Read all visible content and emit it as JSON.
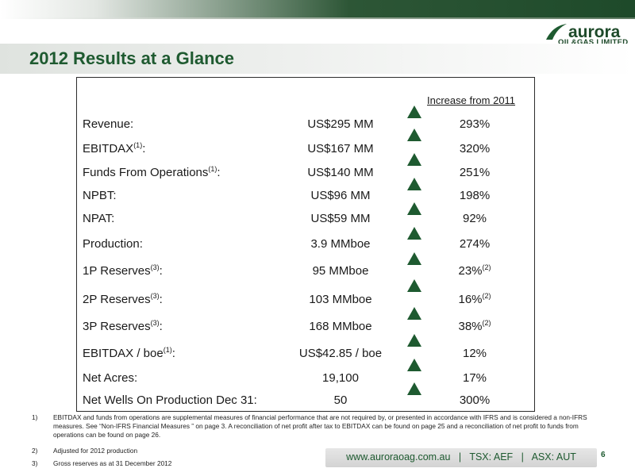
{
  "brand": {
    "logo_text": "aurora",
    "logo_sub": "OIL&GAS LIMITED",
    "accent_color": "#1e5a30"
  },
  "slide": {
    "title": "2012 Results at a Glance",
    "column_header": "Increase from 2011",
    "indicator_icon": "triangle-up-icon"
  },
  "rows": [
    {
      "label": "Revenue:",
      "sup": "",
      "value": "US$295 MM",
      "pct": "293%",
      "pct_sup": ""
    },
    {
      "label": "EBITDAX",
      "sup": "(1)",
      "suffix": ":",
      "value": "US$167 MM",
      "pct": "320%",
      "pct_sup": ""
    },
    {
      "label": "Funds From Operations",
      "sup": "(1)",
      "suffix": ":",
      "value": "US$140 MM",
      "pct": "251%",
      "pct_sup": ""
    },
    {
      "label": "NPBT:",
      "sup": "",
      "value": "US$96 MM",
      "pct": "198%",
      "pct_sup": ""
    },
    {
      "label": "NPAT:",
      "sup": "",
      "value": "US$59 MM",
      "pct": "92%",
      "pct_sup": ""
    },
    {
      "label": "Production:",
      "sup": "",
      "value": "3.9 MMboe",
      "pct": "274%",
      "pct_sup": ""
    },
    {
      "label": "1P Reserves",
      "sup": "(3)",
      "suffix": ":",
      "value": "95 MMboe",
      "pct": "23%",
      "pct_sup": "(2)"
    },
    {
      "label": "2P Reserves",
      "sup": "(3)",
      "suffix": ":",
      "value": "103 MMboe",
      "pct": "16%",
      "pct_sup": "(2)"
    },
    {
      "label": "3P Reserves",
      "sup": "(3)",
      "suffix": ":",
      "value": "168 MMboe",
      "pct": "38%",
      "pct_sup": "(2)"
    },
    {
      "label": "EBITDAX / boe",
      "sup": "(1)",
      "suffix": ":",
      "value": "US$42.85 / boe",
      "pct": "12%",
      "pct_sup": ""
    },
    {
      "label": "Net Acres:",
      "sup": "",
      "value": "19,100",
      "pct": "17%",
      "pct_sup": ""
    },
    {
      "label": "Net Wells On Production Dec 31:",
      "sup": "",
      "value": "50",
      "pct": "300%",
      "pct_sup": ""
    }
  ],
  "footnotes": [
    {
      "num": "1)",
      "text": "EBITDAX and funds from operations are supplemental measures of financial performance that are not required by, or presented in accordance with IFRS and is considered  a non-IFRS measures. See “Non-IFRS Financial Measures ” on page 3.  A reconciliation of net profit after tax to EBITDAX can be found on page 25 and a reconciliation of net profit to funds from operations can be found on page 26."
    },
    {
      "num": "2)",
      "text": "Adjusted for 2012 production"
    },
    {
      "num": "3)",
      "text": "Gross reserves as at 31 December 2012"
    }
  ],
  "footer": {
    "text": "www.auroraoag.com.au   |   TSX: AEF   |   ASX: AUT",
    "page_number": "6"
  }
}
